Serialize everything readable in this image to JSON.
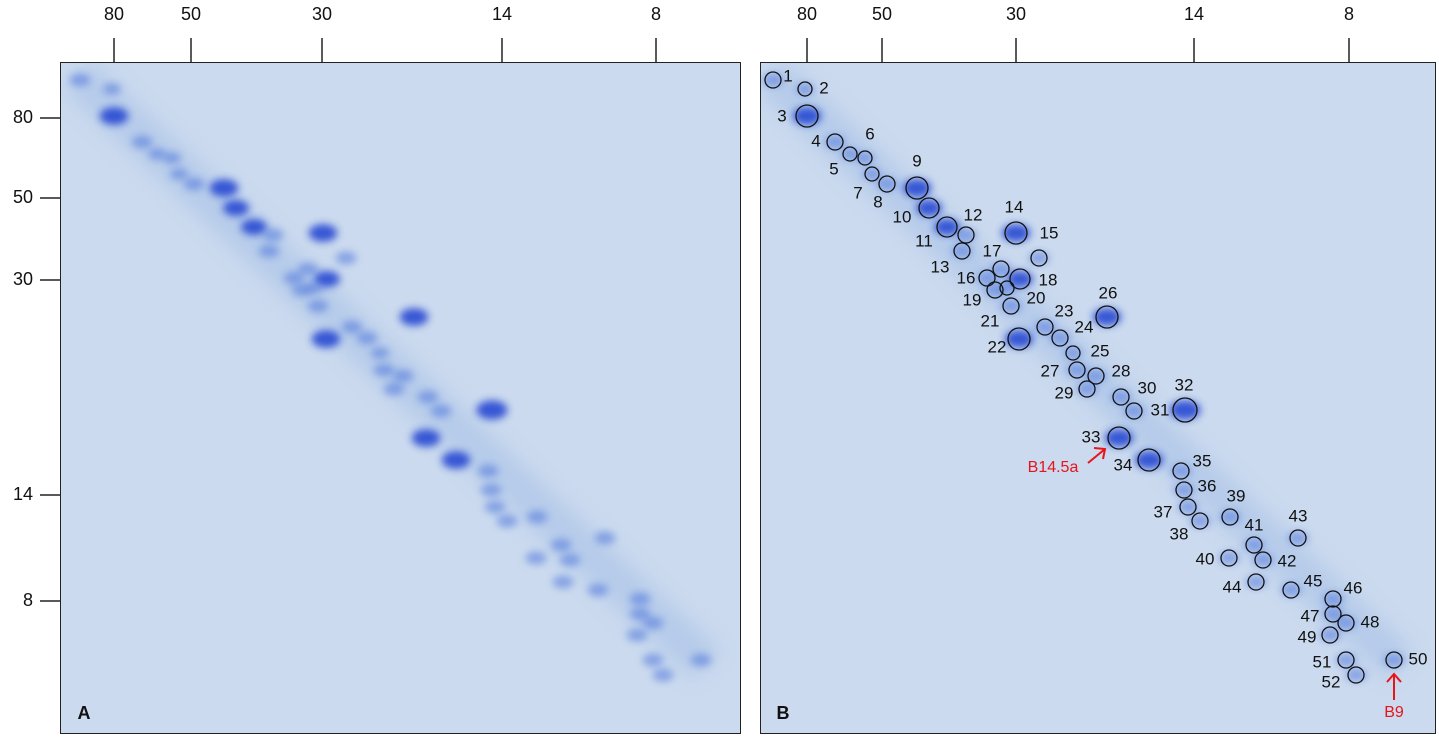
{
  "panels": [
    {
      "label": "A",
      "top_ticks": [
        80,
        50,
        30,
        14,
        8
      ],
      "left_ticks": [
        80,
        50,
        30,
        14,
        8
      ]
    },
    {
      "label": "B",
      "top_ticks": [
        80,
        50,
        30,
        14,
        8
      ],
      "spots": [
        1,
        2,
        3,
        4,
        5,
        6,
        7,
        8,
        9,
        10,
        11,
        12,
        13,
        14,
        15,
        16,
        17,
        18,
        19,
        20,
        21,
        22,
        23,
        24,
        25,
        26,
        27,
        28,
        29,
        30,
        31,
        32,
        33,
        34,
        35,
        36,
        37,
        38,
        39,
        40,
        41,
        42,
        43,
        44,
        45,
        46,
        47,
        48,
        49,
        50,
        51,
        52
      ],
      "annotations": [
        "B14.5a",
        "B9"
      ]
    }
  ]
}
